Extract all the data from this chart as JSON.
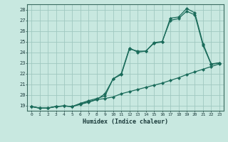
{
  "xlabel": "Humidex (Indice chaleur)",
  "xlim": [
    -0.5,
    23.5
  ],
  "ylim": [
    18.5,
    28.5
  ],
  "xticks": [
    0,
    1,
    2,
    3,
    4,
    5,
    6,
    7,
    8,
    9,
    10,
    11,
    12,
    13,
    14,
    15,
    16,
    17,
    18,
    19,
    20,
    21,
    22,
    23
  ],
  "yticks": [
    19,
    20,
    21,
    22,
    23,
    24,
    25,
    26,
    27,
    28
  ],
  "bg_color": "#c8e8e0",
  "grid_color": "#a0c8c0",
  "line_color": "#1a6b5a",
  "line1_y": [
    18.9,
    18.75,
    18.75,
    18.9,
    18.95,
    18.9,
    19.1,
    19.3,
    19.55,
    19.65,
    19.8,
    20.1,
    20.3,
    20.5,
    20.7,
    20.9,
    21.1,
    21.35,
    21.6,
    21.9,
    22.15,
    22.4,
    22.65,
    22.9
  ],
  "line2_y": [
    18.9,
    18.75,
    18.75,
    18.9,
    18.95,
    18.9,
    19.2,
    19.45,
    19.65,
    19.9,
    21.5,
    21.9,
    24.3,
    24.1,
    24.1,
    24.85,
    24.95,
    27.2,
    27.3,
    28.1,
    27.7,
    24.8,
    22.9,
    23.0
  ],
  "line3_y": [
    18.9,
    18.75,
    18.75,
    18.9,
    18.95,
    18.9,
    19.15,
    19.35,
    19.55,
    20.1,
    21.5,
    22.0,
    24.4,
    24.0,
    24.1,
    24.9,
    25.0,
    27.0,
    27.15,
    27.85,
    27.5,
    24.65,
    22.85,
    23.0
  ]
}
